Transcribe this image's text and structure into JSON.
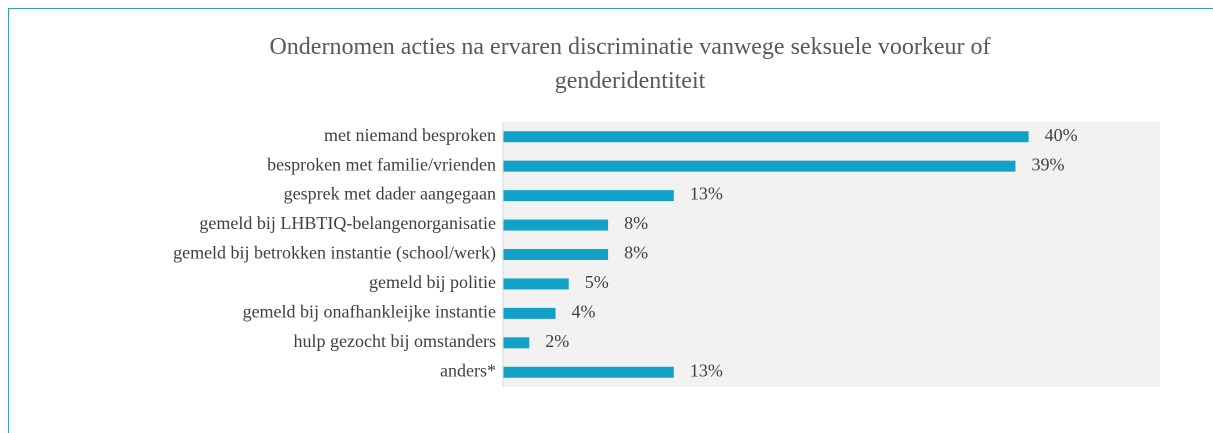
{
  "chart_data": {
    "type": "bar",
    "orientation": "horizontal",
    "title": "Ondernomen acties na ervaren discriminatie vanwege seksuele voorkeur of genderidentiteit",
    "categories": [
      "met niemand besproken",
      "besproken met familie/vrienden",
      "gesprek met dader aangegaan",
      "gemeld bij LHBTIQ-belangenorganisatie",
      "gemeld bij betrokken instantie (school/werk)",
      "gemeld bij politie",
      "gemeld bij onafhankleijke instantie",
      "hulp gezocht bij omstanders",
      "anders*"
    ],
    "values": [
      40,
      39,
      13,
      8,
      8,
      5,
      4,
      2,
      13
    ],
    "value_labels": [
      "40%",
      "39%",
      "13%",
      "8%",
      "8%",
      "5%",
      "4%",
      "2%",
      "13%"
    ],
    "color": "#12a2c7",
    "xlim": [
      0,
      50
    ]
  }
}
